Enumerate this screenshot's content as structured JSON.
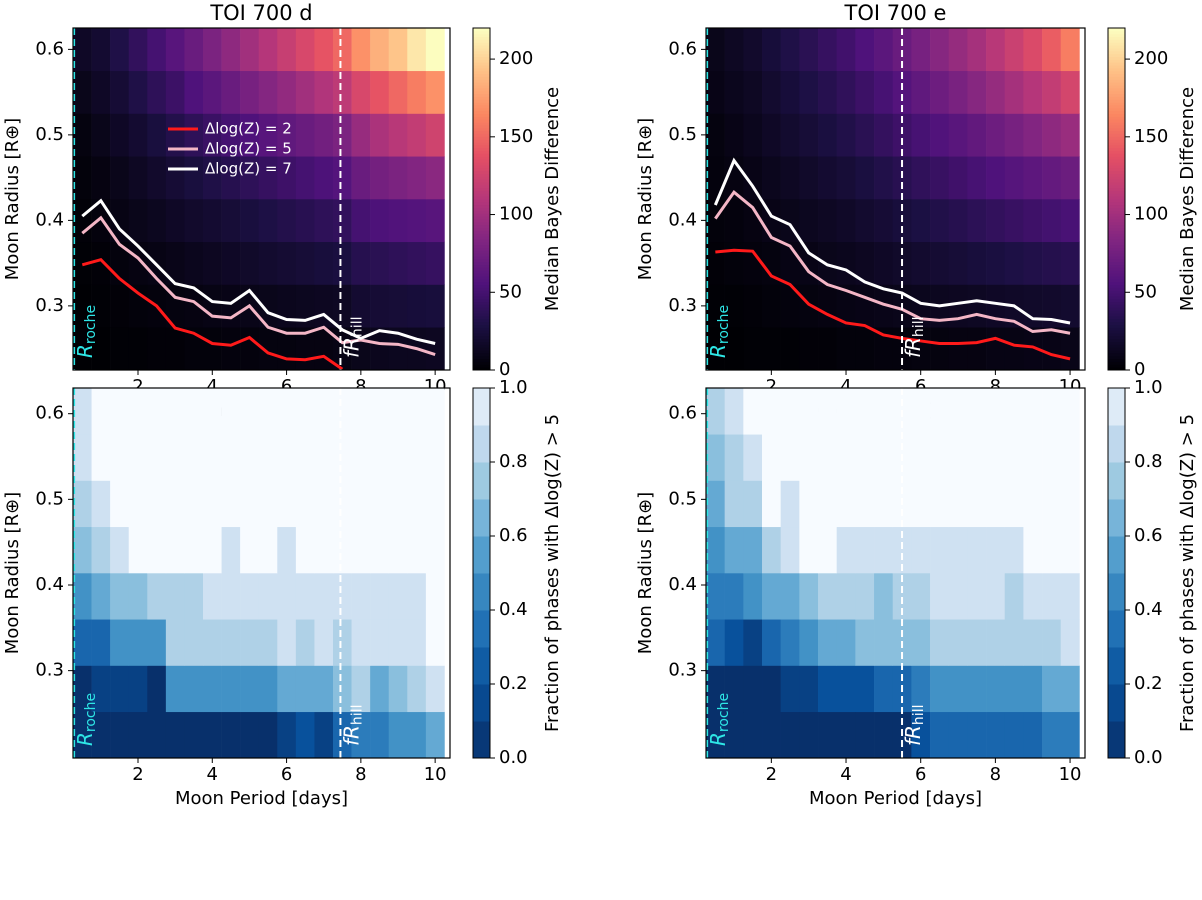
{
  "chart_data": [
    {
      "type": "heatmap",
      "title": "TOI 700 d",
      "xlabel": "Moon Period [days]",
      "ylabel": "Moon Radius [R⊕]",
      "x": [
        0.5,
        1,
        1.5,
        2,
        2.5,
        3,
        3.5,
        4,
        4.5,
        5,
        5.5,
        6,
        6.5,
        7,
        7.5,
        8,
        8.5,
        9,
        9.5,
        10
      ],
      "y": [
        0.25,
        0.3,
        0.35,
        0.4,
        0.45,
        0.5,
        0.55,
        0.6
      ],
      "z": [
        [
          0,
          0,
          1,
          1,
          2,
          2,
          3,
          3,
          4,
          4,
          5,
          5,
          6,
          6,
          7,
          10,
          11,
          12,
          12,
          13
        ],
        [
          0,
          1,
          2,
          3,
          4,
          5,
          6,
          7,
          8,
          9,
          10,
          11,
          12,
          13,
          14,
          20,
          22,
          23,
          24,
          25
        ],
        [
          1,
          2,
          4,
          6,
          7,
          9,
          11,
          13,
          15,
          17,
          19,
          21,
          23,
          25,
          27,
          34,
          36,
          38,
          40,
          42
        ],
        [
          2,
          4,
          7,
          10,
          12,
          15,
          18,
          20,
          23,
          26,
          29,
          32,
          35,
          38,
          40,
          50,
          54,
          56,
          58,
          60
        ],
        [
          3,
          6,
          10,
          14,
          18,
          22,
          26,
          30,
          34,
          38,
          42,
          46,
          50,
          54,
          58,
          70,
          76,
          80,
          84,
          88
        ],
        [
          5,
          10,
          15,
          20,
          26,
          32,
          38,
          44,
          50,
          55,
          60,
          65,
          70,
          75,
          80,
          95,
          105,
          112,
          118,
          125
        ],
        [
          10,
          15,
          22,
          30,
          38,
          45,
          55,
          62,
          70,
          78,
          85,
          92,
          100,
          108,
          115,
          130,
          140,
          150,
          160,
          170
        ],
        [
          15,
          20,
          30,
          40,
          50,
          60,
          70,
          80,
          90,
          100,
          110,
          120,
          130,
          140,
          150,
          170,
          185,
          195,
          210,
          220
        ]
      ],
      "xlim": [
        0.25,
        10.4
      ],
      "ylim": [
        0.225,
        0.625
      ],
      "xticks": [
        2,
        4,
        6,
        8,
        10
      ],
      "yticks": [
        0.3,
        0.4,
        0.5,
        0.6
      ],
      "cmap": "magma",
      "colorbar": {
        "label": "Median Bayes Difference",
        "lim": [
          0,
          220
        ],
        "ticks": [
          0,
          50,
          100,
          150,
          200
        ]
      },
      "vlines": [
        {
          "x": 0.28,
          "color": "#2ee6e6",
          "text": "R",
          "sub": "roche"
        },
        {
          "x": 7.45,
          "color": "#ffffff",
          "text": "fR",
          "sub": "hill"
        }
      ],
      "legend": "center left",
      "series": [
        {
          "name": "Δlog(Z) = 2",
          "color": "#ff1a1a",
          "values": [
            0.348,
            0.354,
            0.332,
            0.315,
            0.3,
            0.274,
            0.268,
            0.256,
            0.254,
            0.263,
            0.245,
            0.238,
            0.237,
            0.241,
            0.226,
            null,
            null,
            null,
            null,
            null
          ]
        },
        {
          "name": "Δlog(Z) = 5",
          "color": "#f4b6c6",
          "values": [
            0.385,
            0.403,
            0.372,
            0.356,
            0.332,
            0.31,
            0.305,
            0.288,
            0.286,
            0.3,
            0.275,
            0.268,
            0.268,
            0.275,
            0.257,
            0.26,
            0.256,
            0.255,
            0.25,
            0.243
          ]
        },
        {
          "name": "Δlog(Z) = 7",
          "color": "#ffffff",
          "values": [
            0.405,
            0.423,
            0.39,
            0.37,
            0.348,
            0.326,
            0.321,
            0.305,
            0.303,
            0.318,
            0.292,
            0.284,
            0.283,
            0.29,
            0.272,
            0.262,
            0.271,
            0.268,
            0.261,
            0.256
          ]
        }
      ]
    },
    {
      "type": "heatmap",
      "title": "TOI 700 e",
      "xlabel": "Moon Period [days]",
      "ylabel": "Moon Radius [R⊕]",
      "x": [
        0.5,
        1,
        1.5,
        2,
        2.5,
        3,
        3.5,
        4,
        4.5,
        5,
        5.5,
        6,
        6.5,
        7,
        7.5,
        8,
        8.5,
        9,
        9.5,
        10
      ],
      "y": [
        0.25,
        0.3,
        0.35,
        0.4,
        0.45,
        0.5,
        0.55,
        0.6
      ],
      "z": [
        [
          0,
          0,
          1,
          1,
          1,
          2,
          2,
          3,
          3,
          4,
          4,
          5,
          5,
          6,
          6,
          7,
          7,
          8,
          8,
          9
        ],
        [
          1,
          1,
          2,
          3,
          4,
          5,
          6,
          7,
          8,
          9,
          10,
          11,
          12,
          13,
          14,
          15,
          16,
          17,
          18,
          19
        ],
        [
          2,
          3,
          4,
          5,
          7,
          8,
          10,
          11,
          13,
          15,
          17,
          19,
          21,
          23,
          25,
          27,
          29,
          31,
          33,
          35
        ],
        [
          3,
          4,
          6,
          8,
          10,
          12,
          14,
          16,
          19,
          22,
          25,
          28,
          31,
          34,
          37,
          40,
          43,
          46,
          49,
          52
        ],
        [
          4,
          6,
          8,
          11,
          14,
          17,
          20,
          23,
          27,
          31,
          35,
          39,
          43,
          47,
          51,
          55,
          59,
          63,
          67,
          71
        ],
        [
          5,
          8,
          11,
          15,
          19,
          23,
          27,
          31,
          36,
          41,
          46,
          51,
          56,
          61,
          66,
          72,
          78,
          84,
          90,
          96
        ],
        [
          8,
          11,
          14,
          19,
          24,
          29,
          34,
          39,
          45,
          51,
          58,
          65,
          72,
          79,
          86,
          94,
          102,
          110,
          118,
          128
        ],
        [
          10,
          14,
          18,
          24,
          30,
          36,
          42,
          48,
          55,
          62,
          70,
          78,
          86,
          94,
          102,
          112,
          122,
          132,
          145,
          160
        ]
      ],
      "xlim": [
        0.25,
        10.4
      ],
      "ylim": [
        0.225,
        0.625
      ],
      "xticks": [
        2,
        4,
        6,
        8,
        10
      ],
      "yticks": [
        0.3,
        0.4,
        0.5,
        0.6
      ],
      "cmap": "magma",
      "colorbar": {
        "label": "Median Bayes Difference",
        "lim": [
          0,
          220
        ],
        "ticks": [
          0,
          50,
          100,
          150,
          200
        ]
      },
      "vlines": [
        {
          "x": 0.28,
          "color": "#2ee6e6",
          "text": "R",
          "sub": "roche"
        },
        {
          "x": 5.5,
          "color": "#ffffff",
          "text": "fR",
          "sub": "hill"
        }
      ],
      "series": [
        {
          "color": "#ff1a1a",
          "values": [
            0.363,
            0.365,
            0.364,
            0.335,
            0.325,
            0.302,
            0.29,
            0.28,
            0.277,
            0.266,
            0.262,
            0.259,
            0.256,
            0.256,
            0.257,
            0.262,
            0.254,
            0.252,
            0.243,
            0.238
          ]
        },
        {
          "color": "#f4b6c6",
          "values": [
            0.402,
            0.433,
            0.415,
            0.38,
            0.37,
            0.34,
            0.325,
            0.318,
            0.31,
            0.302,
            0.296,
            0.285,
            0.283,
            0.285,
            0.29,
            0.285,
            0.282,
            0.27,
            0.272,
            0.268
          ]
        },
        {
          "color": "#ffffff",
          "values": [
            0.418,
            0.47,
            0.44,
            0.405,
            0.395,
            0.362,
            0.348,
            0.342,
            0.328,
            0.32,
            0.315,
            0.303,
            0.3,
            0.303,
            0.306,
            0.303,
            0.3,
            0.285,
            0.284,
            0.28
          ]
        }
      ]
    },
    {
      "type": "heatmap",
      "xlabel": "Moon Period [days]",
      "ylabel": "Moon Radius [R⊕]",
      "x": [
        0.5,
        1,
        1.5,
        2,
        2.5,
        3,
        3.5,
        4,
        4.5,
        5,
        5.5,
        6,
        6.5,
        7,
        7.5,
        8,
        8.5,
        9,
        9.5,
        10
      ],
      "y": [
        0.225,
        0.279,
        0.333,
        0.387,
        0.441,
        0.495,
        0.549,
        0.603
      ],
      "z": [
        [
          0,
          0,
          0,
          0,
          0,
          0,
          0,
          0,
          0,
          0,
          0,
          0.1,
          0.2,
          0.1,
          0.3,
          0.4,
          0.4,
          0.5,
          0.5,
          0.6
        ],
        [
          0,
          0.1,
          0.1,
          0.1,
          0,
          0.5,
          0.5,
          0.5,
          0.5,
          0.5,
          0.5,
          0.6,
          0.6,
          0.6,
          0.7,
          0.8,
          0.6,
          0.7,
          0.8,
          0.9
        ],
        [
          0.3,
          0.3,
          0.5,
          0.5,
          0.5,
          0.8,
          0.8,
          0.8,
          0.8,
          0.8,
          0.8,
          0.9,
          0.8,
          0.9,
          0.8,
          0.9,
          0.9,
          0.9,
          0.9,
          1
        ],
        [
          0.5,
          0.6,
          0.7,
          0.7,
          0.8,
          0.8,
          0.8,
          0.9,
          0.9,
          0.9,
          0.9,
          0.9,
          0.9,
          0.9,
          0.9,
          0.9,
          0.9,
          0.9,
          0.9,
          1
        ],
        [
          0.7,
          0.8,
          0.9,
          1,
          1,
          1,
          1,
          1,
          0.9,
          1,
          1,
          0.9,
          1,
          1,
          1,
          1,
          1,
          1,
          1,
          1
        ],
        [
          0.8,
          0.9,
          1,
          1,
          1,
          1,
          1,
          1,
          1,
          1,
          1,
          1,
          1,
          1,
          1,
          1,
          1,
          1,
          1,
          1
        ],
        [
          0.9,
          1,
          1,
          1,
          1,
          1,
          1,
          1,
          1,
          1,
          1,
          1,
          1,
          1,
          1,
          1,
          1,
          1,
          1,
          1
        ],
        [
          0.9,
          1,
          1,
          1,
          1,
          1,
          1,
          1,
          1,
          1,
          1,
          1,
          1,
          1,
          1,
          1,
          1,
          1,
          1,
          1
        ]
      ],
      "xlim": [
        0.25,
        10.4
      ],
      "ylim": [
        0.198,
        0.63
      ],
      "xticks": [
        2,
        4,
        6,
        8,
        10
      ],
      "yticks": [
        0.3,
        0.4,
        0.5,
        0.6
      ],
      "cmap": "Blues_r",
      "colorbar": {
        "label": "Fraction of phases with Δlog(Z) > 5",
        "lim": [
          0,
          1
        ],
        "ticks": [
          {
            "value": 0,
            "label": "0.0"
          },
          0.2,
          0.4,
          0.6,
          0.8,
          {
            "value": 1,
            "label": "1.0"
          }
        ]
      },
      "vlines": [
        {
          "x": 0.28,
          "color": "#2ee6e6",
          "text": "R",
          "sub": "roche"
        },
        {
          "x": 7.45,
          "color": "#ffffff",
          "text": "fR",
          "sub": "hill"
        }
      ]
    },
    {
      "type": "heatmap",
      "xlabel": "Moon Period [days]",
      "ylabel": "Moon Radius [R⊕]",
      "x": [
        0.5,
        1,
        1.5,
        2,
        2.5,
        3,
        3.5,
        4,
        4.5,
        5,
        5.5,
        6,
        6.5,
        7,
        7.5,
        8,
        8.5,
        9,
        9.5,
        10
      ],
      "y": [
        0.225,
        0.279,
        0.333,
        0.387,
        0.441,
        0.495,
        0.549,
        0.603
      ],
      "z": [
        [
          0,
          0,
          0,
          0,
          0,
          0,
          0,
          0,
          0,
          0,
          0,
          0.2,
          0.3,
          0.3,
          0.3,
          0.3,
          0.3,
          0.3,
          0.4,
          0.4
        ],
        [
          0,
          0,
          0,
          0,
          0.1,
          0.1,
          0.2,
          0.2,
          0.2,
          0.3,
          0.3,
          0.4,
          0.5,
          0.5,
          0.5,
          0.5,
          0.5,
          0.5,
          0.6,
          0.6
        ],
        [
          0.3,
          0.2,
          0.1,
          0.3,
          0.4,
          0.5,
          0.6,
          0.6,
          0.7,
          0.7,
          0.7,
          0.7,
          0.8,
          0.8,
          0.8,
          0.8,
          0.8,
          0.8,
          0.8,
          0.9
        ],
        [
          0.4,
          0.4,
          0.5,
          0.6,
          0.6,
          0.7,
          0.8,
          0.8,
          0.8,
          0.7,
          0.8,
          0.8,
          0.9,
          0.9,
          0.9,
          0.9,
          0.8,
          0.9,
          0.9,
          0.9
        ],
        [
          0.5,
          0.6,
          0.6,
          0.8,
          0.9,
          1,
          1,
          0.9,
          0.9,
          0.9,
          0.9,
          0.9,
          0.9,
          0.9,
          0.9,
          0.9,
          0.9,
          1,
          1,
          1
        ],
        [
          0.6,
          0.8,
          0.8,
          1,
          0.9,
          1,
          1,
          1,
          1,
          1,
          1,
          1,
          1,
          1,
          1,
          1,
          1,
          1,
          1,
          1
        ],
        [
          0.7,
          0.8,
          0.9,
          1,
          1,
          1,
          1,
          1,
          1,
          1,
          1,
          1,
          1,
          1,
          1,
          1,
          1,
          1,
          1,
          1
        ],
        [
          0.8,
          0.9,
          1,
          1,
          1,
          1,
          1,
          1,
          1,
          1,
          1,
          1,
          1,
          1,
          1,
          1,
          1,
          1,
          1,
          1
        ]
      ],
      "xlim": [
        0.25,
        10.4
      ],
      "ylim": [
        0.198,
        0.63
      ],
      "xticks": [
        2,
        4,
        6,
        8,
        10
      ],
      "yticks": [
        0.3,
        0.4,
        0.5,
        0.6
      ],
      "cmap": "Blues_r",
      "colorbar": {
        "label": "Fraction of phases with Δlog(Z) > 5",
        "lim": [
          0,
          1
        ],
        "ticks": [
          {
            "value": 0,
            "label": "0.0"
          },
          0.2,
          0.4,
          0.6,
          0.8,
          {
            "value": 1,
            "label": "1.0"
          }
        ]
      },
      "vlines": [
        {
          "x": 0.28,
          "color": "#2ee6e6",
          "text": "R",
          "sub": "roche"
        },
        {
          "x": 5.5,
          "color": "#ffffff",
          "text": "fR",
          "sub": "hill"
        }
      ]
    }
  ]
}
